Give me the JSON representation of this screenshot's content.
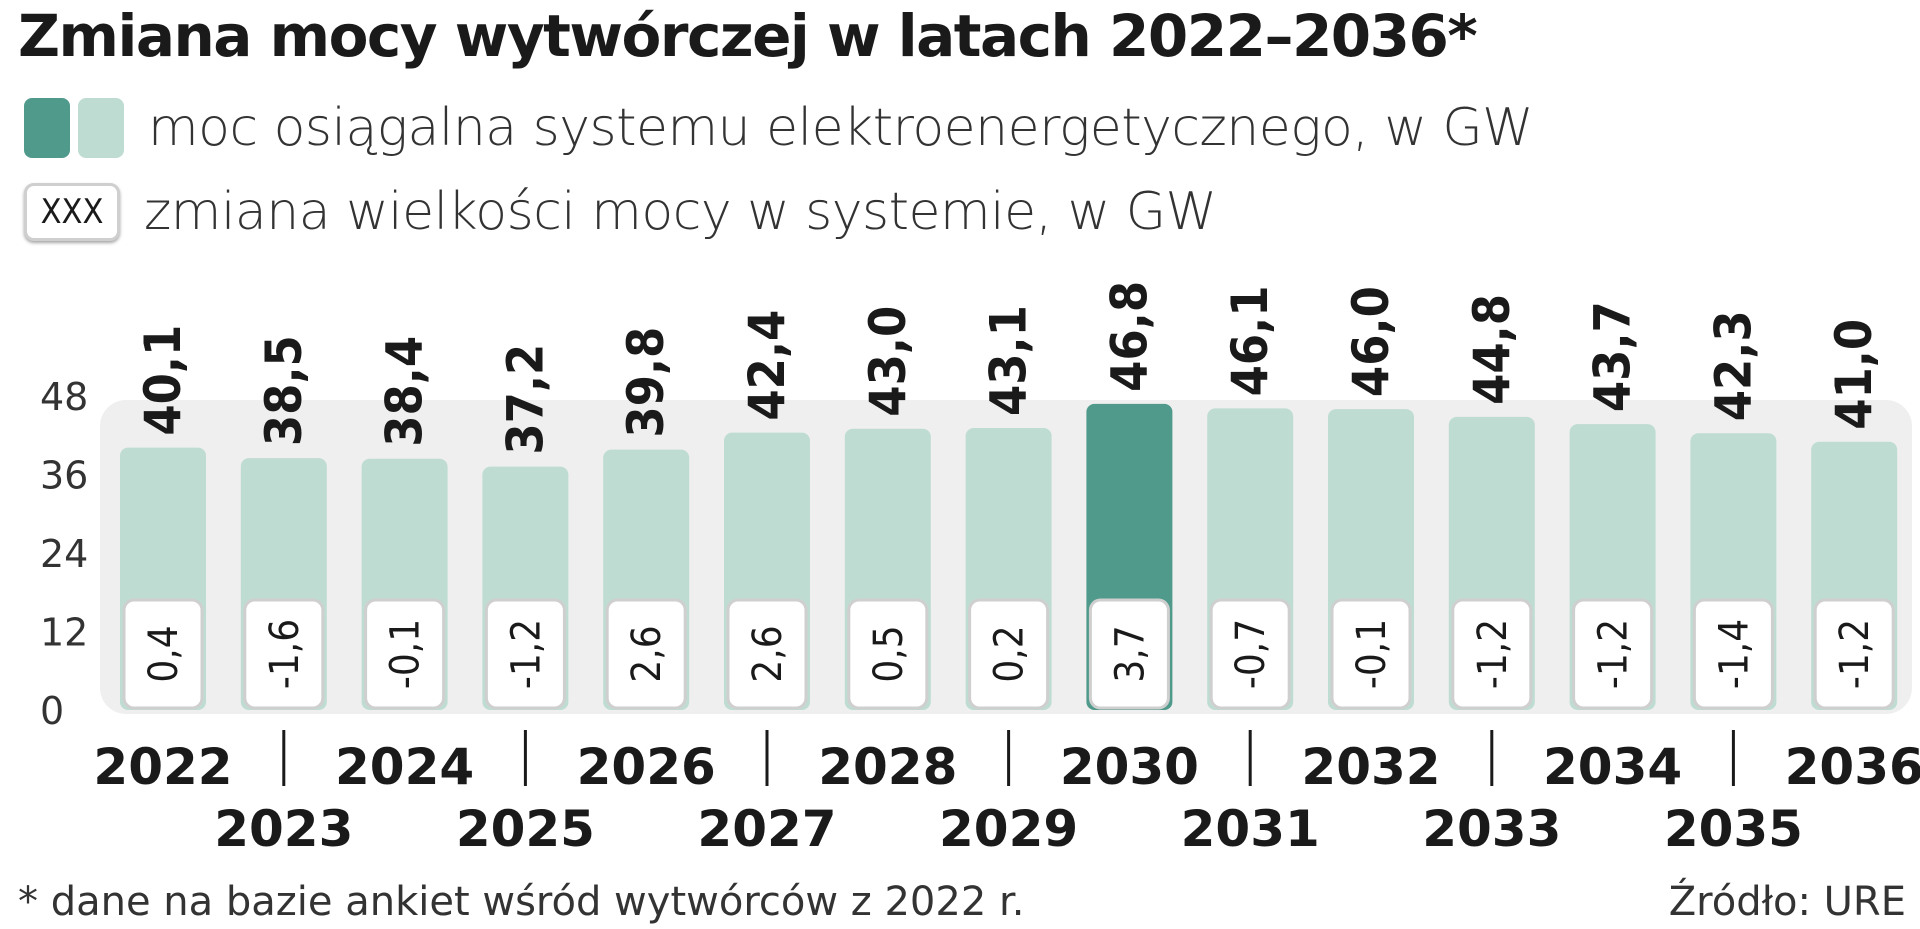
{
  "title": "Zmiana mocy wytwórczej w latach 2022–2036*",
  "legend": {
    "capacity_label": "moc osiągalna systemu elektroenergetycznego, w GW",
    "change_sample": "XXX",
    "change_label": "zmiana wielkości mocy w systemie, w GW"
  },
  "footnote": "* dane na bazie ankiet wśród wytwórców z 2022 r.",
  "source": "Źródło: URE",
  "colors": {
    "bar": "#bfdcd3",
    "bar_highlight": "#4f9a8a",
    "panel": "#efefef"
  },
  "chart_data": {
    "type": "bar",
    "categories": [
      "2022",
      "2023",
      "2024",
      "2025",
      "2026",
      "2027",
      "2028",
      "2029",
      "2030",
      "2031",
      "2032",
      "2033",
      "2034",
      "2035",
      "2036"
    ],
    "values": [
      40.1,
      38.5,
      38.4,
      37.2,
      39.8,
      42.4,
      43.0,
      43.1,
      46.8,
      46.1,
      46.0,
      44.8,
      43.7,
      42.3,
      41.0
    ],
    "value_labels": [
      "40,1",
      "38,5",
      "38,4",
      "37,2",
      "39,8",
      "42,4",
      "43,0",
      "43,1",
      "46,8",
      "46,1",
      "46,0",
      "44,8",
      "43,7",
      "42,3",
      "41,0"
    ],
    "changes": [
      0.4,
      -1.6,
      -0.1,
      -1.2,
      2.6,
      2.6,
      0.5,
      0.2,
      3.7,
      -0.7,
      -0.1,
      -1.2,
      -1.2,
      -1.4,
      -1.2
    ],
    "change_labels": [
      "0,4",
      "-1,6",
      "-0,1",
      "-1,2",
      "2,6",
      "2,6",
      "0,5",
      "0,2",
      "3,7",
      "-0,7",
      "-0,1",
      "-1,2",
      "-1,2",
      "-1,4",
      "-1,2"
    ],
    "highlight": "2030",
    "yticks": [
      "0",
      "12",
      "24",
      "36",
      "48"
    ],
    "ytick_values": [
      0,
      12,
      24,
      36,
      48
    ],
    "ylim": [
      0,
      48
    ],
    "title": "",
    "xlabel": "",
    "ylabel": ""
  }
}
